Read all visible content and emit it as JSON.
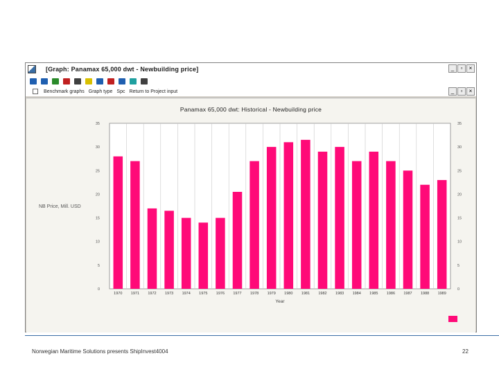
{
  "window": {
    "title": "[Graph: Panamax 65,000 dwt - Newbuilding price]",
    "buttons": [
      "_",
      "▫",
      "×"
    ],
    "inner_buttons": [
      "_",
      "▫",
      "×"
    ]
  },
  "toolbar": {
    "icons": [
      {
        "name": "select-icon",
        "color": "#1f5fb0"
      },
      {
        "name": "zoom-icon",
        "color": "#1f5fb0"
      },
      {
        "name": "copy-icon",
        "color": "#2a8a2a"
      },
      {
        "name": "cut-icon",
        "color": "#c02020"
      },
      {
        "name": "print-icon",
        "color": "#404040"
      },
      {
        "name": "chart-icon",
        "color": "#d8c000"
      },
      {
        "name": "line-icon",
        "color": "#1f5fb0"
      },
      {
        "name": "area-icon",
        "color": "#c02020"
      },
      {
        "name": "bar-icon",
        "color": "#1f5fb0"
      },
      {
        "name": "grid-icon",
        "color": "#20a0a0"
      },
      {
        "name": "check-icon",
        "color": "#404040"
      }
    ]
  },
  "menu": {
    "items": [
      "Benchmark graphs",
      "Graph type",
      "Spc",
      "Return to Project input"
    ]
  },
  "chart_data": {
    "type": "bar",
    "title": "Panamax 65,000 dwt: Historical - Newbuilding price",
    "xlabel": "Year",
    "ylabel": "NB Price, Mill. USD",
    "categories": [
      "1970",
      "1971",
      "1972",
      "1973",
      "1974",
      "1975",
      "1976",
      "1977",
      "1978",
      "1979",
      "1980",
      "1981",
      "1982",
      "1983",
      "1984",
      "1985",
      "1986",
      "1987",
      "1988",
      "1989"
    ],
    "values": [
      28,
      27,
      17,
      16.5,
      15,
      14,
      15,
      20.5,
      27,
      30,
      31,
      31.5,
      29,
      30,
      27,
      29,
      27,
      25,
      22,
      23
    ],
    "ylim": [
      0,
      35
    ],
    "yticks": [
      "0",
      "5",
      "10",
      "15",
      "20",
      "25",
      "30",
      "35"
    ],
    "bar_color": "#ff0a78",
    "grid": "vertical"
  },
  "footer": {
    "text": "Norwegian Maritime Solutions presents ShipInvest4004",
    "page_number": "22"
  }
}
